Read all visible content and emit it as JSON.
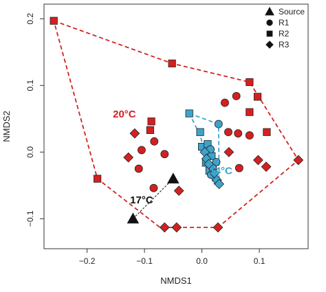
{
  "chart_data": {
    "type": "scatter",
    "xlabel": "NMDS1",
    "ylabel": "NMDS2",
    "xlim": [
      -0.275,
      0.185
    ],
    "ylim": [
      -0.145,
      0.222
    ],
    "xticks": [
      -0.2,
      -0.1,
      0.0,
      0.1
    ],
    "xtick_labels": [
      "−0.2",
      "−0.1",
      "0.0",
      "0.1"
    ],
    "yticks": [
      -0.1,
      0.0,
      0.1,
      0.2
    ],
    "ytick_labels": [
      "−0.1",
      "0.0",
      "0.1",
      "0.2"
    ],
    "legend": {
      "position": "top-right",
      "entries": [
        {
          "label": "Source",
          "shape": "triangle"
        },
        {
          "label": "R1",
          "shape": "circle"
        },
        {
          "label": "R2",
          "shape": "square"
        },
        {
          "label": "R3",
          "shape": "diamond"
        }
      ]
    },
    "groups": [
      {
        "label": "20°C",
        "color": "#d42020",
        "hull_color": "#d42020",
        "label_pos": [
          -0.135,
          0.052
        ],
        "hull": [
          [
            -0.258,
            0.197
          ],
          [
            -0.052,
            0.133
          ],
          [
            0.083,
            0.105
          ],
          [
            0.168,
            -0.012
          ],
          [
            0.028,
            -0.113
          ],
          [
            -0.073,
            -0.113
          ],
          [
            -0.182,
            -0.04
          ]
        ],
        "points": [
          {
            "shape": "square",
            "x": -0.258,
            "y": 0.197
          },
          {
            "shape": "square",
            "x": -0.052,
            "y": 0.133
          },
          {
            "shape": "square",
            "x": 0.083,
            "y": 0.105
          },
          {
            "shape": "square",
            "x": 0.097,
            "y": 0.083
          },
          {
            "shape": "square",
            "x": 0.083,
            "y": 0.06
          },
          {
            "shape": "square",
            "x": 0.113,
            "y": 0.03
          },
          {
            "shape": "square",
            "x": -0.088,
            "y": 0.046
          },
          {
            "shape": "square",
            "x": -0.09,
            "y": 0.033
          },
          {
            "shape": "square",
            "x": -0.182,
            "y": -0.04
          },
          {
            "shape": "circle",
            "x": 0.04,
            "y": 0.074
          },
          {
            "shape": "circle",
            "x": 0.06,
            "y": 0.084
          },
          {
            "shape": "circle",
            "x": 0.046,
            "y": 0.03
          },
          {
            "shape": "circle",
            "x": 0.063,
            "y": 0.028
          },
          {
            "shape": "circle",
            "x": 0.083,
            "y": 0.025
          },
          {
            "shape": "circle",
            "x": -0.083,
            "y": 0.016
          },
          {
            "shape": "circle",
            "x": -0.105,
            "y": 0.003
          },
          {
            "shape": "circle",
            "x": -0.065,
            "y": -0.003
          },
          {
            "shape": "circle",
            "x": -0.11,
            "y": -0.025
          },
          {
            "shape": "circle",
            "x": -0.084,
            "y": -0.054
          },
          {
            "shape": "circle",
            "x": 0.065,
            "y": -0.024
          },
          {
            "shape": "diamond",
            "x": -0.117,
            "y": 0.028
          },
          {
            "shape": "diamond",
            "x": -0.128,
            "y": -0.008
          },
          {
            "shape": "diamond",
            "x": 0.047,
            "y": 0.0
          },
          {
            "shape": "diamond",
            "x": 0.098,
            "y": -0.012
          },
          {
            "shape": "diamond",
            "x": 0.112,
            "y": -0.022
          },
          {
            "shape": "diamond",
            "x": 0.168,
            "y": -0.012
          },
          {
            "shape": "diamond",
            "x": -0.04,
            "y": -0.058
          },
          {
            "shape": "diamond",
            "x": 0.028,
            "y": -0.113
          },
          {
            "shape": "diamond",
            "x": -0.065,
            "y": -0.113
          },
          {
            "shape": "diamond",
            "x": -0.044,
            "y": -0.113
          }
        ]
      },
      {
        "label": "14°C",
        "color": "#3ea3cc",
        "hull_color": "#3ea3cc",
        "label_pos": [
          0.033,
          -0.033
        ],
        "hull": [
          [
            -0.022,
            0.058
          ],
          [
            0.029,
            0.042
          ],
          [
            0.03,
            -0.04
          ],
          [
            0.02,
            -0.048
          ],
          [
            -0.003,
            0.025
          ]
        ],
        "points": [
          {
            "shape": "square",
            "x": -0.022,
            "y": 0.058
          },
          {
            "shape": "square",
            "x": -0.003,
            "y": 0.03
          },
          {
            "shape": "square",
            "x": 0.0,
            "y": 0.008
          },
          {
            "shape": "square",
            "x": 0.01,
            "y": 0.012
          },
          {
            "shape": "square",
            "x": 0.017,
            "y": -0.006
          },
          {
            "shape": "square",
            "x": 0.007,
            "y": -0.016
          },
          {
            "shape": "square",
            "x": 0.013,
            "y": -0.028
          },
          {
            "shape": "circle",
            "x": 0.029,
            "y": 0.042
          },
          {
            "shape": "circle",
            "x": 0.015,
            "y": 0.004
          },
          {
            "shape": "circle",
            "x": 0.025,
            "y": -0.015
          },
          {
            "shape": "circle",
            "x": 0.019,
            "y": -0.024
          },
          {
            "shape": "circle",
            "x": 0.016,
            "y": -0.034
          },
          {
            "shape": "diamond",
            "x": 0.005,
            "y": 0.0
          },
          {
            "shape": "diamond",
            "x": 0.008,
            "y": -0.01
          },
          {
            "shape": "diamond",
            "x": 0.012,
            "y": -0.018
          },
          {
            "shape": "diamond",
            "x": 0.022,
            "y": -0.032
          },
          {
            "shape": "diamond",
            "x": 0.026,
            "y": -0.042
          },
          {
            "shape": "diamond",
            "x": 0.03,
            "y": -0.048
          }
        ]
      },
      {
        "label": "17°C",
        "color": "#111111",
        "hull_color": "#111111",
        "label_pos": [
          -0.105,
          -0.077
        ],
        "hull": [
          [
            -0.12,
            -0.1
          ],
          [
            -0.05,
            -0.04
          ]
        ],
        "points": [
          {
            "shape": "triangle",
            "x": -0.12,
            "y": -0.1
          },
          {
            "shape": "triangle",
            "x": -0.05,
            "y": -0.04
          }
        ]
      }
    ]
  }
}
